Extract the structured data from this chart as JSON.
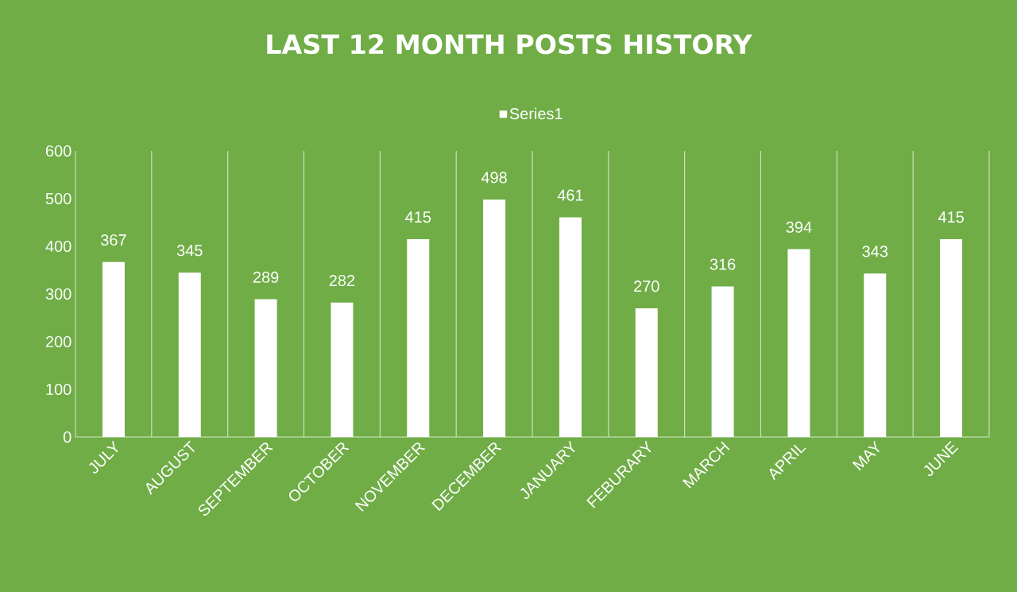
{
  "chart_data": {
    "type": "bar",
    "title": "LAST 12 MONTH POSTS HISTORY",
    "categories": [
      "JULY",
      "AUGUST",
      "SEPTEMBER",
      "OCTOBER",
      "NOVEMBER",
      "DECEMBER",
      "JANUARY",
      "FEBURARY",
      "MARCH",
      "APRIL",
      "MAY",
      "JUNE"
    ],
    "series": [
      {
        "name": "Series1",
        "color": "#ffffff",
        "values": [
          367,
          345,
          289,
          282,
          415,
          498,
          461,
          270,
          316,
          394,
          343,
          415
        ]
      }
    ],
    "ylim": [
      0,
      600
    ],
    "yticks": [
      0,
      100,
      200,
      300,
      400,
      500,
      600
    ],
    "grid": "x",
    "legend": "top",
    "data_labels": true
  }
}
